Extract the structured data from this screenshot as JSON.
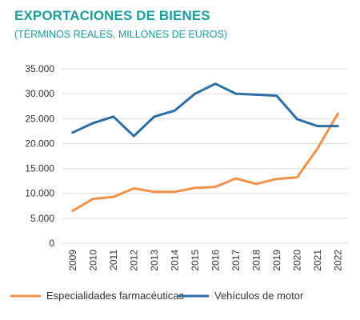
{
  "title": "EXPORTACIONES DE BIENES",
  "subtitle": "(TÉRMINOS REALES, MILLONES DE EUROS)",
  "colors": {
    "title": "#1a9e9a",
    "grid": "#d9d9d9",
    "axis_text": "#333333"
  },
  "chart_data": {
    "type": "line",
    "x": [
      "2009",
      "2010",
      "2011",
      "2012",
      "2013",
      "2014",
      "2015",
      "2016",
      "2017",
      "2018",
      "2019",
      "2020",
      "2021",
      "2022"
    ],
    "ylim": [
      0,
      35000
    ],
    "yticks": [
      "0",
      "5.000",
      "10.000",
      "15.000",
      "20.000",
      "25.000",
      "30.000",
      "35.000"
    ],
    "ytick_values": [
      0,
      5000,
      10000,
      15000,
      20000,
      25000,
      30000,
      35000
    ],
    "grid": true,
    "legend_position": "bottom",
    "series": [
      {
        "name": "Especialidades farmacéuticas",
        "color": "#f0914a",
        "values": [
          6500,
          8900,
          9300,
          11000,
          10300,
          10300,
          11100,
          11300,
          13000,
          11900,
          12900,
          13200,
          19000,
          26000
        ]
      },
      {
        "name": "Vehículos de motor",
        "color": "#2e6da4",
        "values": [
          22200,
          24100,
          25400,
          21500,
          25400,
          26600,
          30000,
          32000,
          30000,
          29800,
          29600,
          24900,
          23500,
          23500
        ]
      }
    ]
  }
}
